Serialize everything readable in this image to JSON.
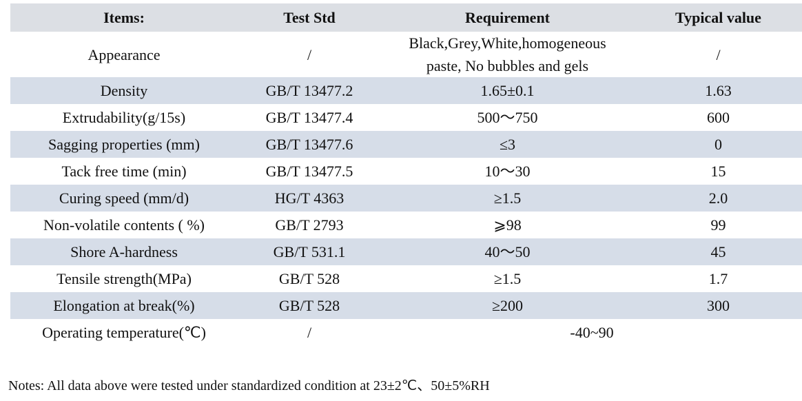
{
  "table": {
    "header": [
      "Items:",
      "Test Std",
      "Requirement",
      "Typical value"
    ],
    "rows": [
      [
        "Appearance",
        "/",
        "Black,Grey,White,homogeneous paste, No bubbles and gels",
        "/"
      ],
      [
        "Density",
        "GB/T 13477.2",
        "1.65±0.1",
        "1.63"
      ],
      [
        "Extrudability(g/15s)",
        "GB/T 13477.4",
        "500～750",
        "600"
      ],
      [
        "Sagging properties (mm)",
        "GB/T 13477.6",
        "≤3",
        "0"
      ],
      [
        "Tack free time (min)",
        "GB/T 13477.5",
        "10～30",
        "15"
      ],
      [
        "Curing speed (mm/d)",
        "HG/T 4363",
        "≥1.5",
        "2.0"
      ],
      [
        "Non-volatile contents ( %)",
        "GB/T 2793",
        "⩾98",
        "99"
      ],
      [
        "Shore A-hardness",
        "GB/T 531.1",
        "40～50",
        "45"
      ],
      [
        "Tensile strength(MPa)",
        "GB/T 528",
        "≥1.5",
        "1.7"
      ],
      [
        "Elongation at break(%)",
        "GB/T 528",
        "≥200",
        "300"
      ],
      [
        "Operating temperature(℃)",
        "/",
        "-40~90"
      ]
    ]
  },
  "notes": "Notes: All data above were tested under standardized condition at 23±2℃、50±5%RH"
}
